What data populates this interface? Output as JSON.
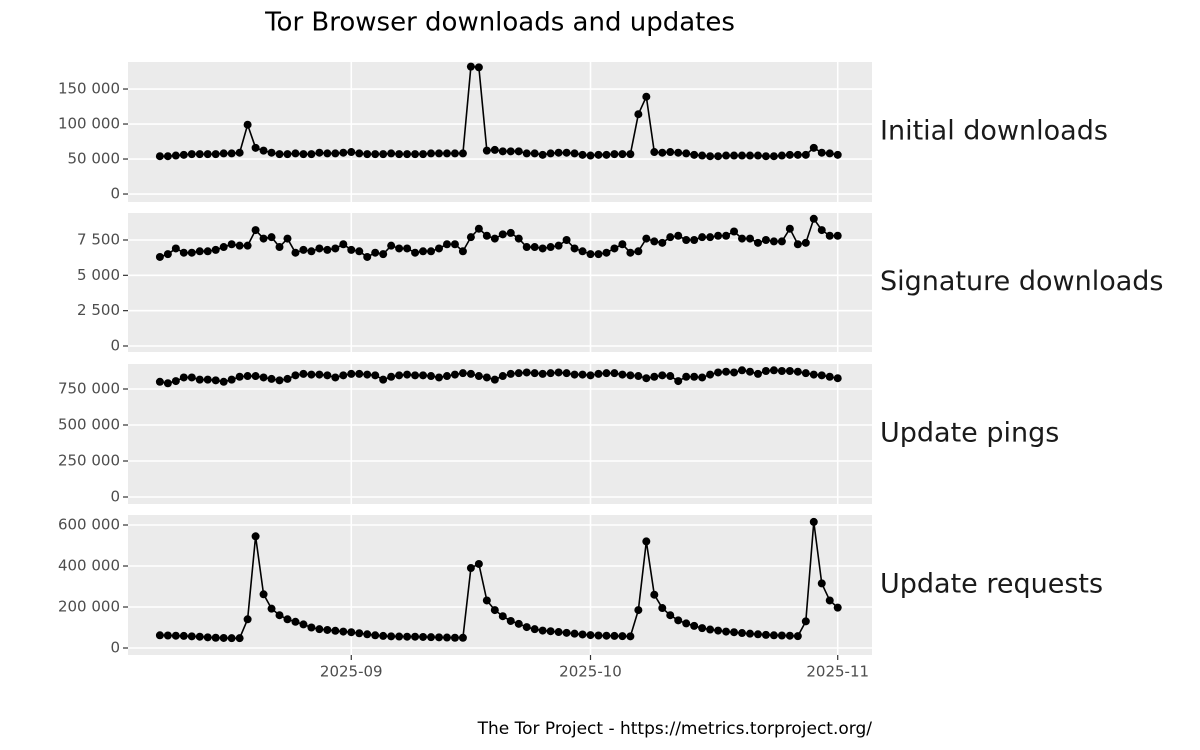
{
  "title": "Tor Browser downloads and updates",
  "caption": "The Tor Project - https://metrics.torproject.org/",
  "chart_data": [
    {
      "type": "line",
      "label": "Initial downloads",
      "color": "#000000",
      "grid": true,
      "values": [
        54000,
        54000,
        55000,
        56000,
        57000,
        57000,
        57000,
        57000,
        58000,
        58000,
        59000,
        99000,
        66000,
        62000,
        59000,
        57000,
        57000,
        58000,
        57000,
        57000,
        59000,
        58000,
        58000,
        59000,
        60000,
        58000,
        57000,
        57000,
        57000,
        58000,
        57000,
        57000,
        57000,
        57000,
        58000,
        58000,
        58000,
        58000,
        58000,
        182000,
        181000,
        62000,
        63000,
        61000,
        61000,
        61000,
        58000,
        58000,
        56000,
        58000,
        59000,
        59000,
        58000,
        56000,
        55000,
        56000,
        56000,
        57000,
        57000,
        57000,
        114000,
        139000,
        60000,
        59000,
        60000,
        59000,
        58000,
        56000,
        55000,
        54000,
        54000,
        55000,
        55000,
        55000,
        55000,
        55000,
        54000,
        54000,
        55000,
        56000,
        56000,
        56000,
        66000,
        59000,
        58000,
        56000
      ],
      "ylim": [
        -11400,
        188600
      ],
      "yticks": [
        0,
        {
          "value": 50000,
          "label": "50 000"
        },
        {
          "value": 100000,
          "label": "100 000"
        },
        {
          "value": 150000,
          "label": "150 000"
        }
      ]
    },
    {
      "type": "line",
      "label": "Signature downloads",
      "color": "#000000",
      "grid": true,
      "values": [
        6300,
        6500,
        6900,
        6600,
        6600,
        6700,
        6700,
        6800,
        7000,
        7200,
        7100,
        7100,
        8200,
        7600,
        7700,
        7000,
        7600,
        6600,
        6800,
        6700,
        6900,
        6800,
        6900,
        7200,
        6800,
        6700,
        6300,
        6600,
        6500,
        7100,
        6900,
        6900,
        6600,
        6700,
        6700,
        6900,
        7200,
        7200,
        6700,
        7700,
        8300,
        7800,
        7600,
        7900,
        8000,
        7600,
        7000,
        7000,
        6900,
        7000,
        7100,
        7500,
        6900,
        6700,
        6500,
        6500,
        6600,
        6900,
        7200,
        6600,
        6700,
        7600,
        7400,
        7300,
        7700,
        7800,
        7500,
        7500,
        7700,
        7700,
        7800,
        7800,
        8100,
        7600,
        7600,
        7300,
        7500,
        7400,
        7400,
        8300,
        7200,
        7300,
        9000,
        8200,
        7800,
        7800
      ],
      "ylim": [
        -425,
        9410
      ],
      "yticks": [
        0,
        {
          "value": 2500,
          "label": "2 500"
        },
        {
          "value": 5000,
          "label": "5 000"
        },
        {
          "value": 7500,
          "label": "7 500"
        }
      ]
    },
    {
      "type": "line",
      "label": "Update pings",
      "color": "#000000",
      "grid": true,
      "values": [
        800000,
        790000,
        805000,
        830000,
        830000,
        815000,
        815000,
        810000,
        800000,
        815000,
        835000,
        840000,
        840000,
        830000,
        820000,
        810000,
        820000,
        845000,
        855000,
        850000,
        850000,
        845000,
        830000,
        845000,
        855000,
        855000,
        850000,
        845000,
        815000,
        835000,
        845000,
        850000,
        845000,
        845000,
        840000,
        830000,
        840000,
        850000,
        860000,
        855000,
        840000,
        830000,
        815000,
        840000,
        855000,
        860000,
        865000,
        860000,
        855000,
        860000,
        865000,
        860000,
        850000,
        850000,
        845000,
        855000,
        860000,
        860000,
        850000,
        845000,
        840000,
        825000,
        835000,
        845000,
        840000,
        805000,
        835000,
        835000,
        830000,
        850000,
        865000,
        870000,
        865000,
        880000,
        870000,
        855000,
        875000,
        880000,
        875000,
        875000,
        870000,
        860000,
        850000,
        845000,
        835000,
        825000
      ],
      "ylim": [
        -48600,
        923600
      ],
      "yticks": [
        0,
        {
          "value": 250000,
          "label": "250 000"
        },
        {
          "value": 500000,
          "label": "500 000"
        },
        {
          "value": 750000,
          "label": "750 000"
        }
      ]
    },
    {
      "type": "line",
      "label": "Update requests",
      "color": "#000000",
      "grid": true,
      "values": [
        62000,
        61000,
        60000,
        59000,
        57000,
        55000,
        52000,
        50000,
        49000,
        48000,
        48000,
        140000,
        545000,
        262000,
        192000,
        160000,
        140000,
        128000,
        115000,
        100000,
        92000,
        88000,
        84000,
        80000,
        77000,
        72000,
        67000,
        62000,
        59000,
        57000,
        56000,
        55000,
        55000,
        54000,
        53000,
        52000,
        51000,
        50000,
        50000,
        390000,
        410000,
        232000,
        185000,
        155000,
        132000,
        118000,
        102000,
        92000,
        85000,
        82000,
        78000,
        74000,
        70000,
        66000,
        63000,
        61000,
        60000,
        59000,
        58000,
        57000,
        185000,
        520000,
        260000,
        195000,
        160000,
        135000,
        120000,
        108000,
        97000,
        90000,
        85000,
        80000,
        77000,
        73000,
        70000,
        67000,
        64000,
        62000,
        61000,
        60000,
        58000,
        130000,
        615000,
        315000,
        232000,
        197000
      ],
      "ylim": [
        -34100,
        648800
      ],
      "yticks": [
        0,
        {
          "value": 200000,
          "label": "200 000"
        },
        {
          "value": 400000,
          "label": "400 000"
        },
        {
          "value": 600000,
          "label": "600 000"
        }
      ],
      "xlim": [
        -4,
        89.3
      ],
      "xticks": [
        {
          "value": 24,
          "label": "2025-09"
        },
        {
          "value": 54,
          "label": "2025-10"
        },
        {
          "value": 85,
          "label": "2025-11"
        }
      ]
    }
  ]
}
